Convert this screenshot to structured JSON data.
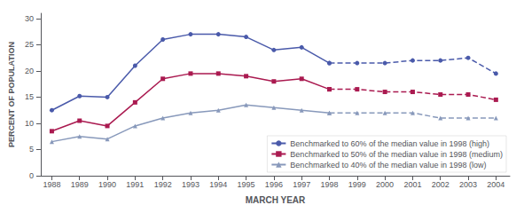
{
  "chart_data": {
    "type": "line",
    "xlabel": "MARCH YEAR",
    "ylabel": "PERCENT OF POPULATION",
    "xlim": [
      1987.6,
      2004.5
    ],
    "xticks": [
      1988,
      1989,
      1990,
      1991,
      1992,
      1993,
      1994,
      1995,
      1996,
      1997,
      1998,
      1999,
      2000,
      2001,
      2002,
      2003,
      2004
    ],
    "ylim": [
      0,
      31
    ],
    "yticks": [
      0,
      5,
      10,
      15,
      20,
      25,
      30
    ],
    "grid": false,
    "legend": "lower right",
    "series": [
      {
        "name": "Benchmarked to 60% of the median value in 1998 (high)",
        "color": "#4a5aaa",
        "marker": "circle",
        "line_style": "solid",
        "x": [
          1988,
          1989,
          1990,
          1991,
          1992,
          1993,
          1994,
          1995,
          1996,
          1997,
          1998
        ],
        "values": [
          12.5,
          15.2,
          15.0,
          21.0,
          26.0,
          27.0,
          27.0,
          26.5,
          24.0,
          24.5,
          21.5
        ]
      },
      {
        "name": "Benchmarked to 50% of the median value in 1998 (medium)",
        "color": "#aa1a50",
        "marker": "square",
        "line_style": "solid",
        "x": [
          1988,
          1989,
          1990,
          1991,
          1992,
          1993,
          1994,
          1995,
          1996,
          1997,
          1998
        ],
        "values": [
          8.5,
          10.5,
          9.5,
          14.0,
          18.5,
          19.5,
          19.5,
          19.0,
          18.0,
          18.5,
          16.5
        ]
      },
      {
        "name": "Benchmarked to 40% of the median value in 1998 (low)",
        "color": "#8899bb",
        "marker": "triangle",
        "line_style": "solid",
        "x": [
          1988,
          1989,
          1990,
          1991,
          1992,
          1993,
          1994,
          1995,
          1996,
          1997,
          1998
        ],
        "values": [
          6.5,
          7.5,
          7.0,
          9.5,
          11.0,
          12.0,
          12.5,
          13.5,
          13.0,
          12.5,
          12.0
        ]
      },
      {
        "name": "Benchmarked to 60% of the median value in 1998 (high)",
        "color": "#4a5aaa",
        "marker": "circle",
        "line_style": "dashed",
        "x": [
          1998,
          1999,
          2000,
          2001,
          2002,
          2003,
          2004
        ],
        "values": [
          21.5,
          21.5,
          21.5,
          22.0,
          22.0,
          22.5,
          19.5
        ]
      },
      {
        "name": "Benchmarked to 50% of the median value in 1998 (medium)",
        "color": "#aa1a50",
        "marker": "square",
        "line_style": "dashed",
        "x": [
          1998,
          1999,
          2000,
          2001,
          2002,
          2003,
          2004
        ],
        "values": [
          16.5,
          16.5,
          16.0,
          16.0,
          15.5,
          15.5,
          14.5
        ]
      },
      {
        "name": "Benchmarked to 40% of the median value in 1998 (low)",
        "color": "#8899bb",
        "marker": "triangle",
        "line_style": "dashed",
        "x": [
          1998,
          1999,
          2000,
          2001,
          2002,
          2003,
          2004
        ],
        "values": [
          12.0,
          12.0,
          12.0,
          12.0,
          11.0,
          11.0,
          11.0
        ]
      }
    ]
  }
}
